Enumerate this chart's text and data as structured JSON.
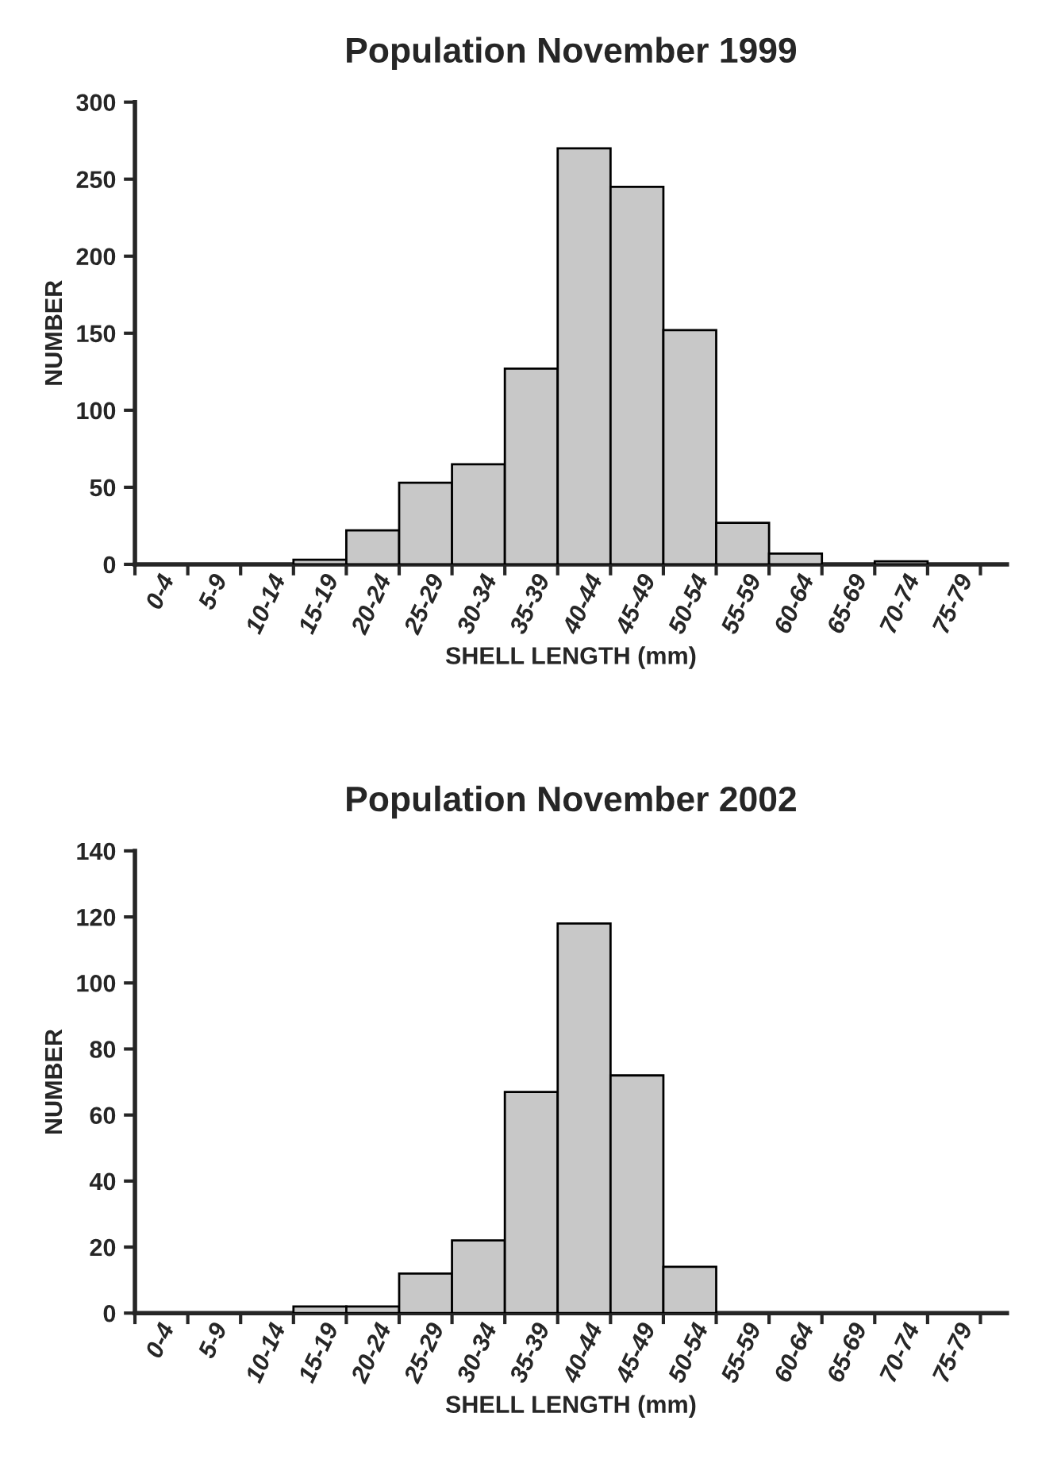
{
  "chart_data": [
    {
      "type": "bar",
      "title": "Population November 1999",
      "xlabel": "SHELL LENGTH (mm)",
      "ylabel": "NUMBER",
      "categories": [
        "0-4",
        "5-9",
        "10-14",
        "15-19",
        "20-24",
        "25-29",
        "30-34",
        "35-39",
        "40-44",
        "45-49",
        "50-54",
        "55-59",
        "60-64",
        "65-69",
        "70-74",
        "75-79"
      ],
      "values": [
        0,
        0,
        0,
        3,
        22,
        53,
        65,
        127,
        270,
        245,
        152,
        27,
        7,
        0,
        2,
        0
      ],
      "color": "#c8c8c8",
      "ylim": [
        0,
        300
      ],
      "yticks": [
        0,
        50,
        100,
        150,
        200,
        250,
        300
      ]
    },
    {
      "type": "bar",
      "title": "Population November 2002",
      "xlabel": "SHELL LENGTH (mm)",
      "ylabel": "NUMBER",
      "categories": [
        "0-4",
        "5-9",
        "10-14",
        "15-19",
        "20-24",
        "25-29",
        "30-34",
        "35-39",
        "40-44",
        "45-49",
        "50-54",
        "55-59",
        "60-64",
        "65-69",
        "70-74",
        "75-79"
      ],
      "values": [
        0,
        0,
        0,
        2,
        2,
        12,
        22,
        67,
        118,
        72,
        14,
        0,
        0,
        0,
        0,
        0
      ],
      "color": "#c8c8c8",
      "ylim": [
        0,
        140
      ],
      "yticks": [
        0,
        20,
        40,
        60,
        80,
        100,
        120,
        140
      ]
    }
  ]
}
